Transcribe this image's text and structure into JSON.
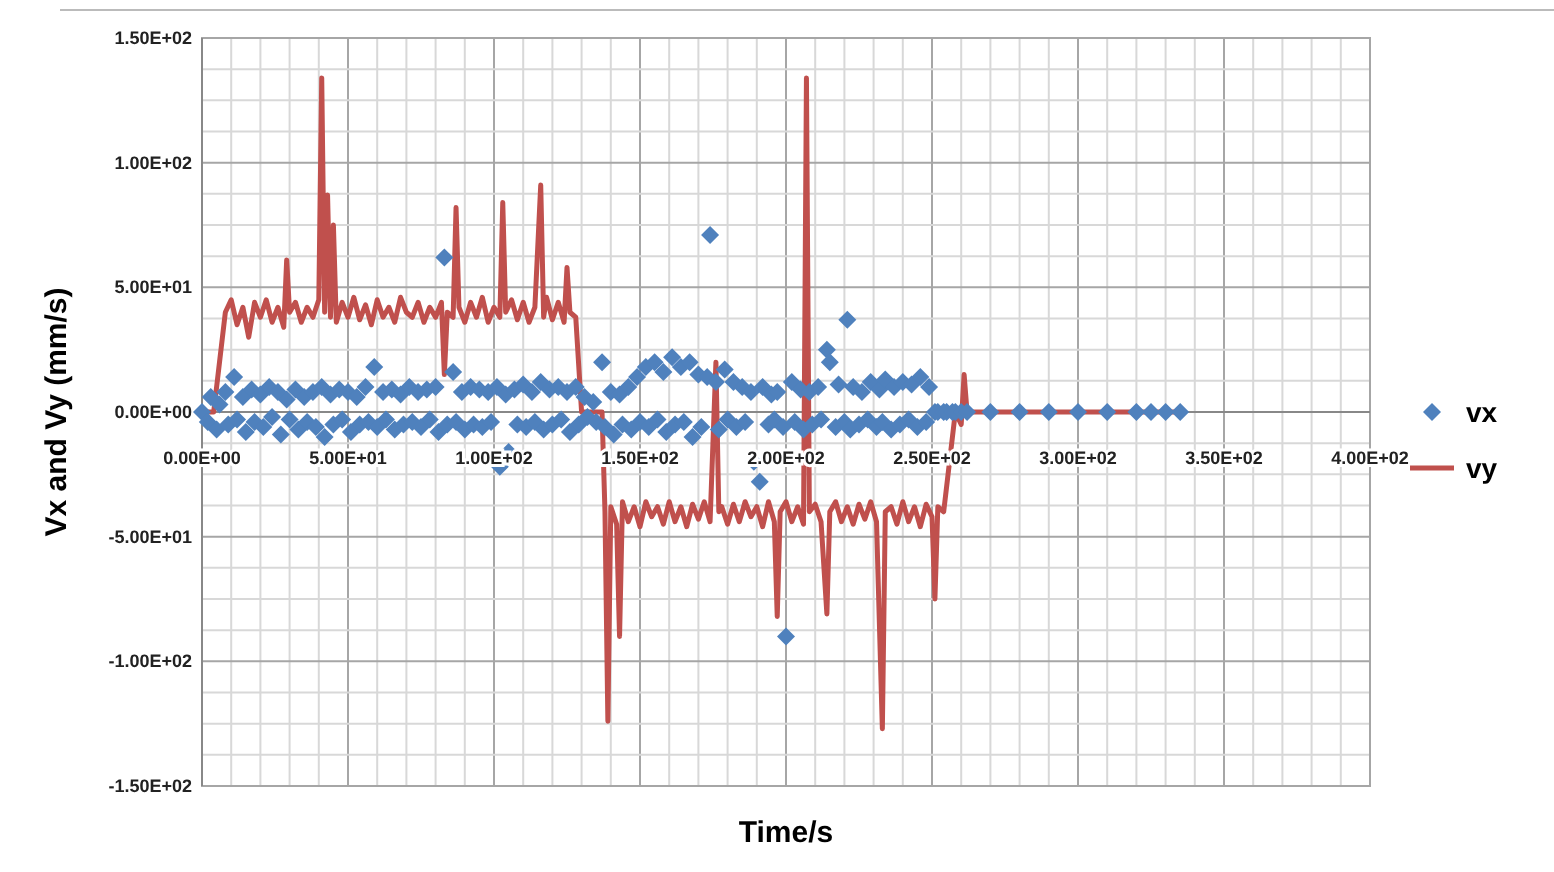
{
  "chart_data": {
    "type": "scatter",
    "xlabel": "Time/s",
    "ylabel": "Vx  and Vy (mm/s)",
    "xlim": [
      0,
      400
    ],
    "ylim": [
      -150,
      150
    ],
    "xticks": [
      {
        "value": 0,
        "label": "0.00E+00"
      },
      {
        "value": 10,
        "label": null
      },
      {
        "value": 20,
        "label": null
      },
      {
        "value": 30,
        "label": null
      },
      {
        "value": 40,
        "label": null
      },
      {
        "value": 50,
        "label": "5.00E+01"
      },
      {
        "value": 60,
        "label": null
      },
      {
        "value": 70,
        "label": null
      },
      {
        "value": 80,
        "label": null
      },
      {
        "value": 90,
        "label": null
      },
      {
        "value": 100,
        "label": "1.00E+02"
      },
      {
        "value": 110,
        "label": null
      },
      {
        "value": 120,
        "label": null
      },
      {
        "value": 130,
        "label": null
      },
      {
        "value": 140,
        "label": null
      },
      {
        "value": 150,
        "label": "1.50E+02"
      },
      {
        "value": 160,
        "label": null
      },
      {
        "value": 170,
        "label": null
      },
      {
        "value": 180,
        "label": null
      },
      {
        "value": 190,
        "label": null
      },
      {
        "value": 200,
        "label": "2.00E+02"
      },
      {
        "value": 210,
        "label": null
      },
      {
        "value": 220,
        "label": null
      },
      {
        "value": 230,
        "label": null
      },
      {
        "value": 240,
        "label": null
      },
      {
        "value": 250,
        "label": "2.50E+02"
      },
      {
        "value": 260,
        "label": null
      },
      {
        "value": 270,
        "label": null
      },
      {
        "value": 280,
        "label": null
      },
      {
        "value": 290,
        "label": null
      },
      {
        "value": 300,
        "label": "3.00E+02"
      },
      {
        "value": 310,
        "label": null
      },
      {
        "value": 320,
        "label": null
      },
      {
        "value": 330,
        "label": null
      },
      {
        "value": 340,
        "label": null
      },
      {
        "value": 350,
        "label": "3.50E+02"
      },
      {
        "value": 360,
        "label": null
      },
      {
        "value": 370,
        "label": null
      },
      {
        "value": 380,
        "label": null
      },
      {
        "value": 390,
        "label": null
      },
      {
        "value": 400,
        "label": "4.00E+02"
      }
    ],
    "yticks": [
      {
        "value": -150,
        "label": "-1.50E+02"
      },
      {
        "value": -137.5,
        "label": null
      },
      {
        "value": -125,
        "label": null
      },
      {
        "value": -112.5,
        "label": null
      },
      {
        "value": -100,
        "label": "-1.00E+02"
      },
      {
        "value": -87.5,
        "label": null
      },
      {
        "value": -75,
        "label": null
      },
      {
        "value": -62.5,
        "label": null
      },
      {
        "value": -50,
        "label": "-5.00E+01"
      },
      {
        "value": -37.5,
        "label": null
      },
      {
        "value": -25,
        "label": null
      },
      {
        "value": -12.5,
        "label": null
      },
      {
        "value": 0,
        "label": "0.00E+00"
      },
      {
        "value": 12.5,
        "label": null
      },
      {
        "value": 25,
        "label": null
      },
      {
        "value": 37.5,
        "label": null
      },
      {
        "value": 50,
        "label": "5.00E+01"
      },
      {
        "value": 62.5,
        "label": null
      },
      {
        "value": 75,
        "label": null
      },
      {
        "value": 87.5,
        "label": null
      },
      {
        "value": 100,
        "label": "1.00E+02"
      },
      {
        "value": 112.5,
        "label": null
      },
      {
        "value": 125,
        "label": null
      },
      {
        "value": 137.5,
        "label": null
      },
      {
        "value": 150,
        "label": "1.50E+02"
      }
    ],
    "grid": true,
    "legend": "right",
    "series": [
      {
        "name": "vx",
        "marker": "diamond",
        "color": "#4f81bd",
        "x": [
          0,
          2,
          3,
          5,
          6,
          8,
          9,
          11,
          12,
          14,
          15,
          17,
          18,
          20,
          21,
          23,
          24,
          26,
          27,
          29,
          30,
          32,
          33,
          35,
          36,
          38,
          39,
          41,
          42,
          44,
          45,
          47,
          48,
          50,
          51,
          53,
          54,
          56,
          57,
          59,
          60,
          62,
          63,
          65,
          66,
          68,
          69,
          71,
          72,
          74,
          75,
          77,
          78,
          80,
          81,
          83,
          84,
          86,
          87,
          89,
          90,
          92,
          93,
          95,
          96,
          98,
          99,
          101,
          102,
          104,
          105,
          107,
          108,
          110,
          111,
          113,
          114,
          116,
          117,
          119,
          120,
          122,
          123,
          125,
          126,
          128,
          129,
          131,
          132,
          134,
          135,
          137,
          138,
          140,
          141,
          143,
          144,
          146,
          147,
          149,
          150,
          152,
          153,
          155,
          156,
          158,
          159,
          161,
          162,
          164,
          165,
          167,
          168,
          170,
          171,
          173,
          174,
          176,
          177,
          179,
          180,
          182,
          183,
          185,
          186,
          188,
          189,
          191,
          192,
          194,
          195,
          196,
          197,
          199,
          200,
          202,
          203,
          205,
          206,
          208,
          209,
          211,
          212,
          214,
          215,
          217,
          218,
          220,
          221,
          222,
          223,
          225,
          226,
          228,
          229,
          231,
          232,
          233,
          234,
          236,
          237,
          239,
          240,
          242,
          243,
          245,
          246,
          248,
          249,
          251,
          252,
          254,
          255,
          257,
          258,
          260,
          262,
          270,
          280,
          290,
          300,
          310,
          320,
          325,
          330,
          335
        ],
        "values": [
          0,
          -4,
          6,
          -7,
          3,
          8,
          -5,
          14,
          -3,
          6,
          -8,
          9,
          -4,
          7,
          -6,
          10,
          -2,
          8,
          -9,
          5,
          -3,
          9,
          -7,
          6,
          -4,
          8,
          -6,
          10,
          -10,
          7,
          -5,
          9,
          -3,
          8,
          -8,
          6,
          -5,
          10,
          -4,
          18,
          -6,
          8,
          -3,
          9,
          -7,
          7,
          -5,
          10,
          -4,
          8,
          -6,
          9,
          -3,
          10,
          -8,
          62,
          -5,
          16,
          -4,
          8,
          -7,
          10,
          -5,
          9,
          -6,
          8,
          -4,
          10,
          -22,
          7,
          -16,
          9,
          -5,
          11,
          -6,
          8,
          -4,
          12,
          -7,
          9,
          -5,
          10,
          -3,
          8,
          -8,
          10,
          -5,
          6,
          -2,
          4,
          -4,
          20,
          -6,
          8,
          -9,
          7,
          -5,
          10,
          -7,
          14,
          -4,
          18,
          -6,
          20,
          -3,
          16,
          -8,
          22,
          -5,
          18,
          -4,
          20,
          -10,
          15,
          -6,
          14,
          71,
          12,
          -7,
          17,
          -3,
          12,
          -6,
          10,
          -4,
          8,
          -20,
          -28,
          10,
          -5,
          7,
          -3,
          8,
          -6,
          -90,
          12,
          -4,
          9,
          -7,
          8,
          -5,
          10,
          -3,
          25,
          20,
          -6,
          11,
          -4,
          37,
          -7,
          10,
          -5,
          8,
          -3,
          12,
          -6,
          9,
          -4,
          13,
          -7,
          10,
          -5,
          12,
          -3,
          11,
          -6,
          14,
          -4,
          10,
          0,
          0,
          0,
          0,
          0,
          0,
          0,
          0,
          0,
          0,
          0,
          0,
          0,
          0,
          0,
          0,
          0
        ]
      },
      {
        "name": "vy",
        "type": "line",
        "marker": "none",
        "color": "#c0504d",
        "x": [
          0,
          4,
          6,
          8,
          10,
          12,
          14,
          16,
          18,
          20,
          22,
          24,
          26,
          28,
          29,
          30,
          32,
          34,
          36,
          38,
          40,
          41,
          42,
          43,
          44,
          45,
          46,
          48,
          50,
          52,
          54,
          56,
          58,
          60,
          62,
          64,
          66,
          68,
          70,
          72,
          74,
          76,
          78,
          80,
          82,
          83,
          84,
          86,
          87,
          88,
          90,
          92,
          94,
          96,
          98,
          100,
          102,
          103,
          104,
          106,
          108,
          110,
          112,
          114,
          116,
          117,
          118,
          120,
          122,
          124,
          125,
          126,
          128,
          130,
          137,
          138,
          139,
          140,
          142,
          143,
          144,
          146,
          148,
          150,
          152,
          154,
          156,
          158,
          160,
          162,
          164,
          166,
          168,
          170,
          172,
          174,
          176,
          177,
          178,
          180,
          182,
          184,
          186,
          188,
          190,
          192,
          194,
          196,
          197,
          198,
          200,
          202,
          204,
          206,
          207,
          208,
          210,
          212,
          214,
          215,
          217,
          219,
          221,
          223,
          225,
          227,
          229,
          231,
          233,
          234,
          236,
          238,
          240,
          242,
          244,
          246,
          248,
          250,
          251,
          252,
          254,
          256,
          258,
          260,
          261,
          262,
          335
        ],
        "values": [
          0,
          0,
          20,
          40,
          45,
          35,
          42,
          30,
          44,
          38,
          45,
          36,
          42,
          34,
          61,
          40,
          44,
          36,
          42,
          38,
          45,
          134,
          40,
          87,
          38,
          75,
          36,
          44,
          38,
          46,
          37,
          43,
          35,
          45,
          38,
          42,
          36,
          46,
          40,
          38,
          44,
          36,
          42,
          38,
          44,
          15,
          40,
          38,
          82,
          42,
          36,
          44,
          38,
          46,
          36,
          42,
          38,
          84,
          40,
          45,
          37,
          44,
          36,
          42,
          91,
          38,
          46,
          37,
          44,
          36,
          58,
          40,
          38,
          0,
          0,
          -40,
          -124,
          -38,
          -45,
          -90,
          -36,
          -44,
          -38,
          -46,
          -36,
          -42,
          -38,
          -45,
          -36,
          -44,
          -38,
          -46,
          -37,
          -43,
          -36,
          -44,
          20,
          -40,
          -38,
          -45,
          -37,
          -44,
          -36,
          -42,
          -38,
          -46,
          -36,
          -44,
          -82,
          -40,
          -36,
          -44,
          -38,
          -45,
          134,
          -40,
          -37,
          -44,
          -81,
          -40,
          -36,
          -44,
          -38,
          -45,
          -37,
          -43,
          -36,
          -44,
          -127,
          -40,
          -38,
          -45,
          -36,
          -44,
          -38,
          -46,
          -37,
          -42,
          -75,
          -38,
          -40,
          -20,
          0,
          -5,
          15,
          0,
          0
        ]
      }
    ]
  }
}
